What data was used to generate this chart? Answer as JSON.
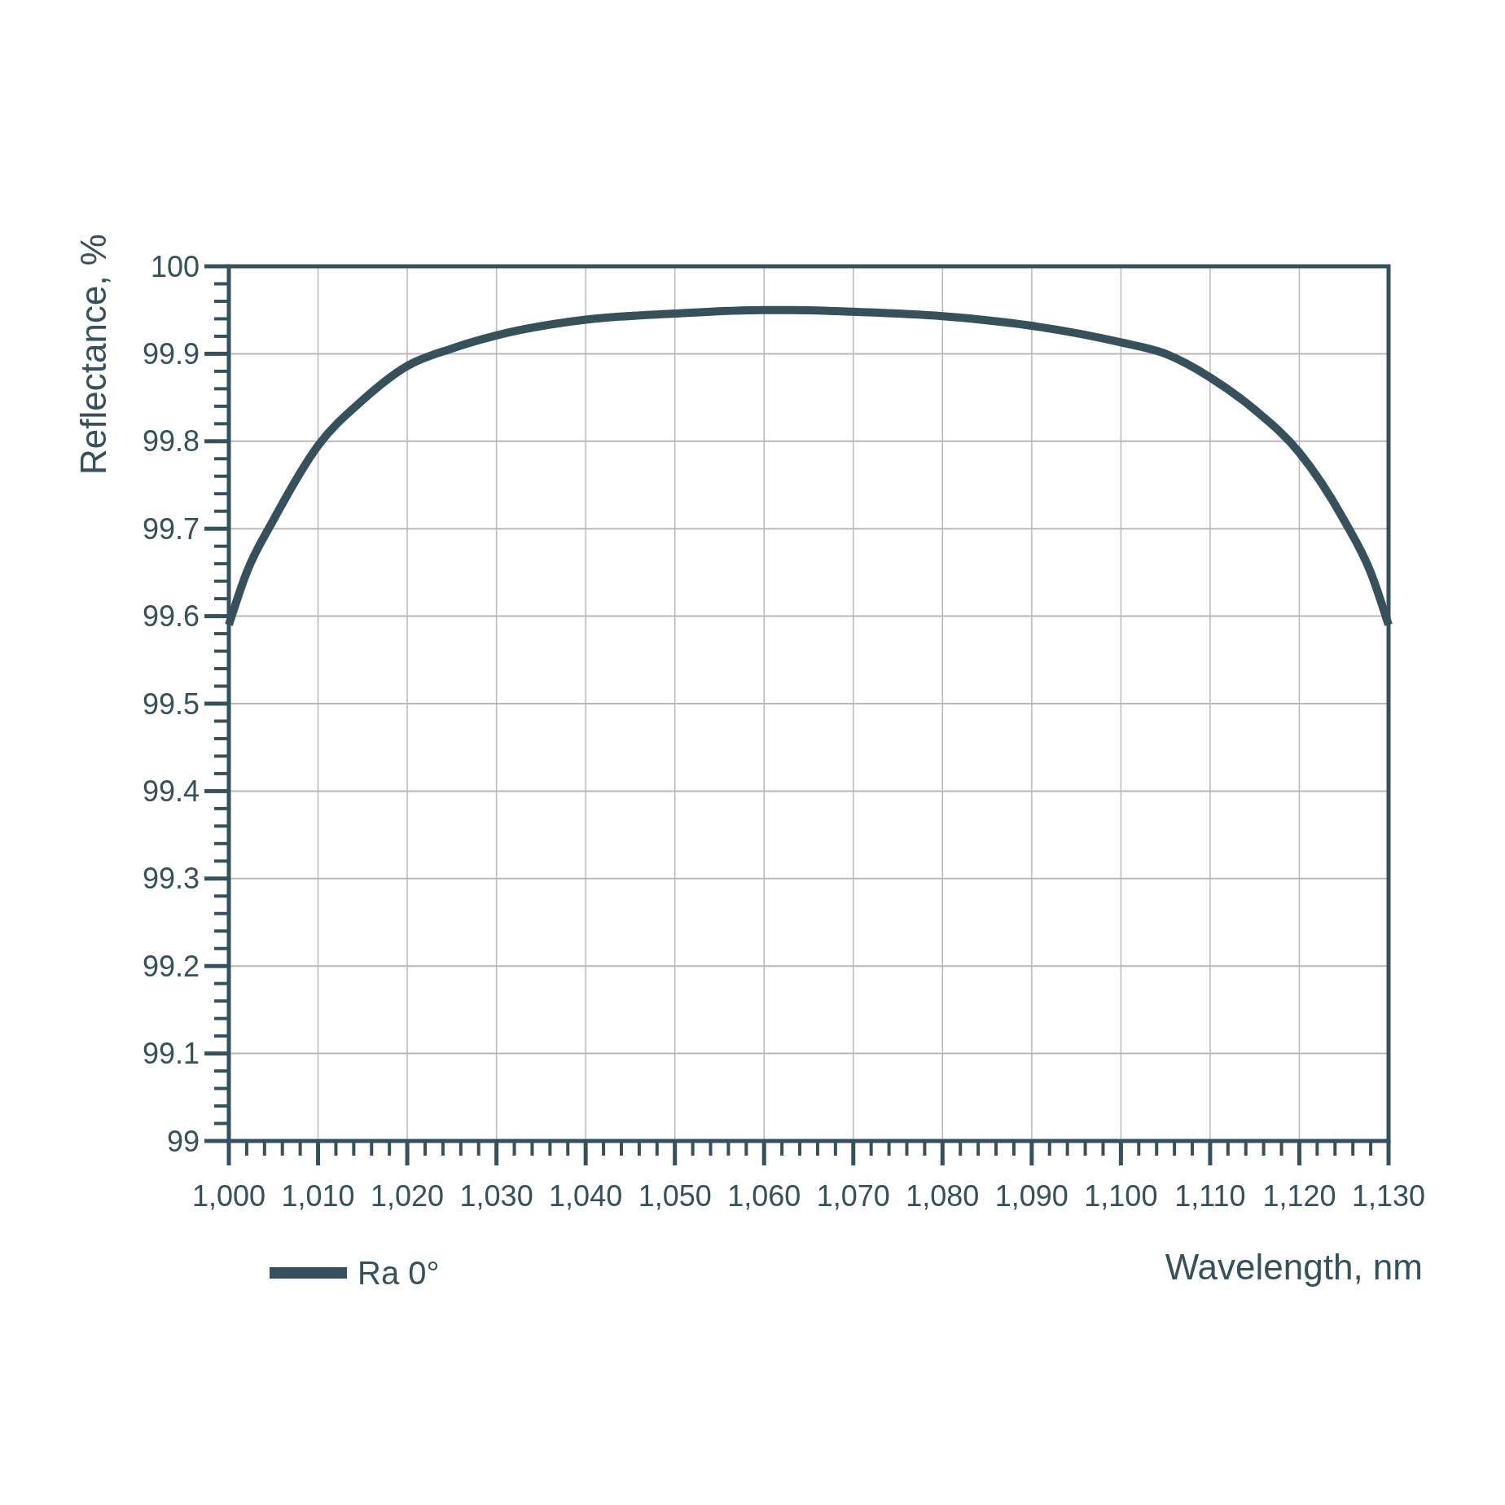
{
  "chart_data": {
    "type": "line",
    "xlabel": "Wavelength, nm",
    "ylabel": "Reflectance, %",
    "x": [
      1000,
      1002,
      1005,
      1010,
      1015,
      1020,
      1025,
      1030,
      1040,
      1050,
      1060,
      1063,
      1070,
      1080,
      1090,
      1100,
      1105,
      1110,
      1115,
      1120,
      1125,
      1128,
      1130
    ],
    "series": [
      {
        "name": "Ra 0°",
        "color": "#36505c",
        "values": [
          99.59,
          99.65,
          99.71,
          99.795,
          99.847,
          99.886,
          99.906,
          99.921,
          99.939,
          99.946,
          99.95,
          99.95,
          99.948,
          99.943,
          99.932,
          99.913,
          99.9,
          99.873,
          99.836,
          99.787,
          99.71,
          99.65,
          99.59
        ]
      }
    ],
    "xlim": [
      1000,
      1130
    ],
    "xticks": [
      {
        "value": 1000,
        "label": "1,000"
      },
      {
        "value": 1010,
        "label": "1,010"
      },
      {
        "value": 1020,
        "label": "1,020"
      },
      {
        "value": 1030,
        "label": "1,030"
      },
      {
        "value": 1040,
        "label": "1,040"
      },
      {
        "value": 1050,
        "label": "1,050"
      },
      {
        "value": 1060,
        "label": "1,060"
      },
      {
        "value": 1070,
        "label": "1,070"
      },
      {
        "value": 1080,
        "label": "1,080"
      },
      {
        "value": 1090,
        "label": "1,090"
      },
      {
        "value": 1100,
        "label": "1,100"
      },
      {
        "value": 1110,
        "label": "1,110"
      },
      {
        "value": 1120,
        "label": "1,120"
      },
      {
        "value": 1130,
        "label": "1,130"
      }
    ],
    "ylim": [
      99,
      100
    ],
    "yticks": [
      99,
      99.1,
      99.2,
      99.3,
      99.4,
      99.5,
      99.6,
      99.7,
      99.8,
      99.9,
      100
    ],
    "grid": true,
    "legend": "bottom left",
    "marker": "none",
    "line_style": "solid"
  }
}
